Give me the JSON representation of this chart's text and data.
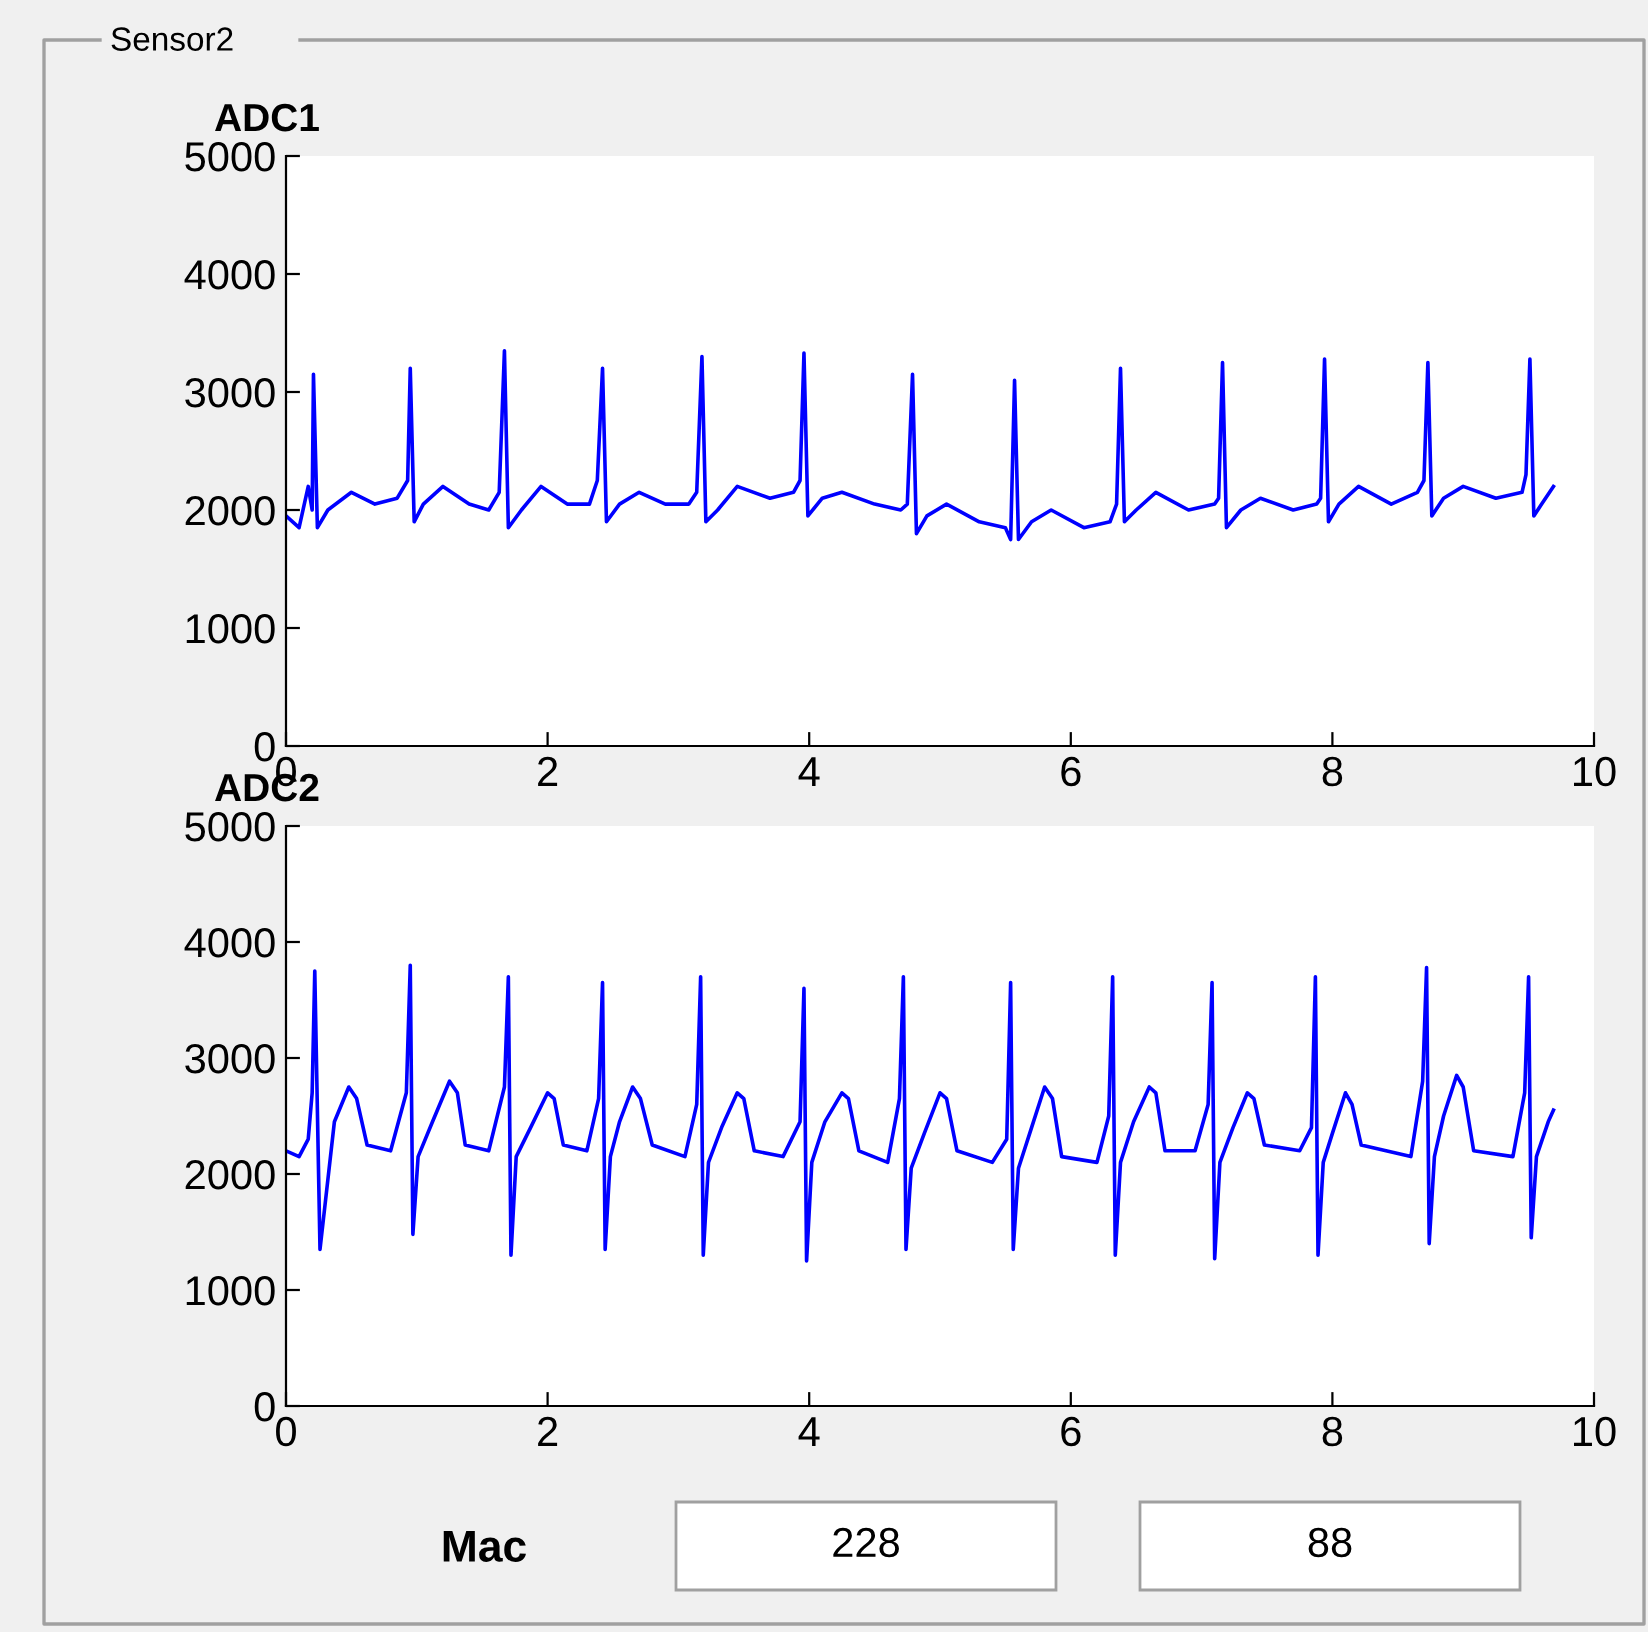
{
  "chart_data": [
    {
      "type": "line",
      "title": "ADC1",
      "annotations": [
        "Sensor2"
      ],
      "xlim": [
        0,
        10
      ],
      "xticks": [
        0,
        2,
        4,
        6,
        8,
        10
      ],
      "ylim": [
        0,
        5000
      ],
      "yticks": [
        0,
        1000,
        2000,
        3000,
        4000,
        5000
      ],
      "grid": false,
      "legend": false,
      "series": [
        {
          "color": "#0000ff",
          "x": [
            0,
            0.1,
            0.17,
            0.2,
            0.21,
            0.24,
            0.32,
            0.5,
            0.68,
            0.85,
            0.93,
            0.95,
            0.98,
            1.05,
            1.2,
            1.4,
            1.55,
            1.63,
            1.67,
            1.7,
            1.8,
            1.95,
            2.15,
            2.32,
            2.38,
            2.42,
            2.45,
            2.55,
            2.7,
            2.9,
            3.08,
            3.14,
            3.18,
            3.21,
            3.3,
            3.45,
            3.7,
            3.88,
            3.93,
            3.96,
            3.99,
            4.1,
            4.25,
            4.5,
            4.7,
            4.75,
            4.79,
            4.82,
            4.9,
            5.05,
            5.3,
            5.5,
            5.54,
            5.57,
            5.6,
            5.7,
            5.85,
            6.1,
            6.3,
            6.35,
            6.38,
            6.41,
            6.5,
            6.65,
            6.9,
            7.1,
            7.13,
            7.16,
            7.19,
            7.3,
            7.45,
            7.7,
            7.88,
            7.91,
            7.94,
            7.97,
            8.05,
            8.2,
            8.45,
            8.65,
            8.7,
            8.73,
            8.76,
            8.85,
            9.0,
            9.25,
            9.45,
            9.48,
            9.51,
            9.54,
            9.6,
            9.69
          ],
          "values": [
            1950,
            1850,
            2200,
            2000,
            3150,
            1850,
            2000,
            2150,
            2050,
            2100,
            2250,
            3200,
            1900,
            2050,
            2200,
            2050,
            2000,
            2150,
            3350,
            1850,
            2000,
            2200,
            2050,
            2050,
            2250,
            3200,
            1900,
            2050,
            2150,
            2050,
            2050,
            2150,
            3300,
            1900,
            2000,
            2200,
            2100,
            2150,
            2250,
            3330,
            1950,
            2100,
            2150,
            2050,
            2000,
            2050,
            3150,
            1800,
            1950,
            2050,
            1900,
            1850,
            1750,
            3100,
            1750,
            1900,
            2000,
            1850,
            1900,
            2050,
            3200,
            1900,
            2000,
            2150,
            2000,
            2050,
            2100,
            3250,
            1850,
            2000,
            2100,
            2000,
            2050,
            2100,
            3280,
            1900,
            2050,
            2200,
            2050,
            2150,
            2250,
            3250,
            1950,
            2100,
            2200,
            2100,
            2150,
            2300,
            3280,
            1950,
            2050,
            2200
          ]
        }
      ]
    },
    {
      "type": "line",
      "title": "ADC2",
      "annotations": [
        "Mac",
        "228",
        "88"
      ],
      "xlim": [
        0,
        10
      ],
      "xticks": [
        0,
        2,
        4,
        6,
        8,
        10
      ],
      "ylim": [
        0,
        5000
      ],
      "yticks": [
        0,
        1000,
        2000,
        3000,
        4000,
        5000
      ],
      "grid": false,
      "legend": false,
      "series": [
        {
          "color": "#0000ff",
          "x": [
            0,
            0.1,
            0.17,
            0.2,
            0.22,
            0.26,
            0.37,
            0.48,
            0.54,
            0.62,
            0.8,
            0.92,
            0.95,
            0.97,
            1.01,
            1.12,
            1.25,
            1.31,
            1.37,
            1.55,
            1.67,
            1.7,
            1.72,
            1.76,
            1.87,
            2.0,
            2.05,
            2.12,
            2.3,
            2.39,
            2.42,
            2.44,
            2.48,
            2.55,
            2.65,
            2.71,
            2.8,
            3.05,
            3.14,
            3.17,
            3.19,
            3.23,
            3.33,
            3.45,
            3.5,
            3.58,
            3.8,
            3.93,
            3.96,
            3.98,
            4.02,
            4.12,
            4.25,
            4.3,
            4.38,
            4.6,
            4.69,
            4.72,
            4.74,
            4.78,
            4.88,
            5.0,
            5.05,
            5.13,
            5.4,
            5.51,
            5.54,
            5.56,
            5.6,
            5.7,
            5.8,
            5.86,
            5.93,
            6.2,
            6.29,
            6.32,
            6.34,
            6.38,
            6.48,
            6.6,
            6.65,
            6.72,
            6.95,
            7.05,
            7.08,
            7.1,
            7.14,
            7.24,
            7.35,
            7.4,
            7.48,
            7.75,
            7.84,
            7.87,
            7.89,
            7.93,
            8.0,
            8.1,
            8.15,
            8.22,
            8.6,
            8.69,
            8.72,
            8.74,
            8.78,
            8.85,
            8.95,
            9.0,
            9.08,
            9.38,
            9.47,
            9.5,
            9.52,
            9.56,
            9.65,
            9.69
          ],
          "values": [
            2200,
            2150,
            2300,
            2700,
            3750,
            1350,
            2450,
            2750,
            2650,
            2250,
            2200,
            2700,
            3800,
            1480,
            2150,
            2450,
            2800,
            2700,
            2250,
            2200,
            2750,
            3700,
            1300,
            2150,
            2400,
            2700,
            2650,
            2250,
            2200,
            2650,
            3650,
            1350,
            2150,
            2450,
            2750,
            2650,
            2250,
            2150,
            2600,
            3700,
            1300,
            2100,
            2400,
            2700,
            2650,
            2200,
            2150,
            2450,
            3600,
            1250,
            2100,
            2450,
            2700,
            2650,
            2200,
            2100,
            2650,
            3700,
            1350,
            2050,
            2350,
            2700,
            2650,
            2200,
            2100,
            2300,
            3650,
            1350,
            2050,
            2400,
            2750,
            2650,
            2150,
            2100,
            2500,
            3700,
            1300,
            2100,
            2450,
            2750,
            2700,
            2200,
            2200,
            2600,
            3650,
            1270,
            2100,
            2400,
            2700,
            2650,
            2250,
            2200,
            2400,
            3700,
            1300,
            2100,
            2350,
            2700,
            2600,
            2250,
            2150,
            2800,
            3780,
            1400,
            2150,
            2500,
            2850,
            2750,
            2200,
            2150,
            2700,
            3700,
            1450,
            2150,
            2450,
            2550
          ]
        }
      ]
    }
  ]
}
